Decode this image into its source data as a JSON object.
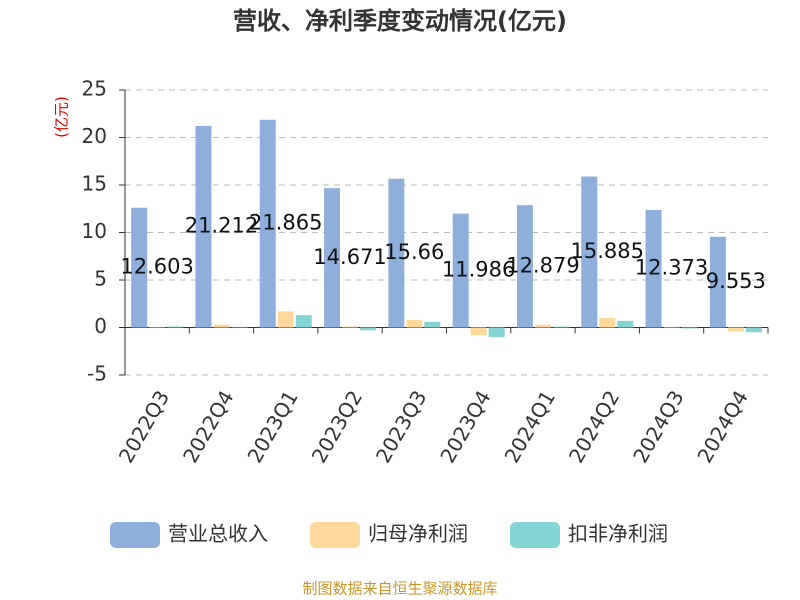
{
  "chart_data": {
    "type": "bar",
    "title": "营收、净利季度变动情况(亿元)",
    "y_label": "(亿元)",
    "source": "制图数据来自恒生聚源数据库",
    "categories": [
      "2022Q3",
      "2022Q4",
      "2023Q1",
      "2023Q2",
      "2023Q3",
      "2023Q4",
      "2024Q1",
      "2024Q2",
      "2024Q3",
      "2024Q4"
    ],
    "series": [
      {
        "name": "营业总收入",
        "color": "#8eaedc",
        "show_labels": true,
        "values": [
          12.603,
          21.212,
          21.865,
          14.671,
          15.66,
          11.986,
          12.879,
          15.885,
          12.373,
          9.553
        ]
      },
      {
        "name": "归母净利润",
        "color": "#fdd89a",
        "show_labels": false,
        "values": [
          0.05,
          0.3,
          1.7,
          0.1,
          0.8,
          -0.8,
          0.3,
          1.0,
          0.05,
          -0.4
        ]
      },
      {
        "name": "扣非净利润",
        "color": "#85d4d4",
        "show_labels": false,
        "values": [
          0.1,
          0.05,
          1.3,
          -0.3,
          0.6,
          -1.0,
          0.1,
          0.7,
          -0.1,
          -0.5
        ]
      }
    ],
    "ylim": [
      -5,
      25
    ],
    "yticks": [
      -5,
      0,
      5,
      10,
      15,
      20,
      25
    ],
    "grid": true
  }
}
